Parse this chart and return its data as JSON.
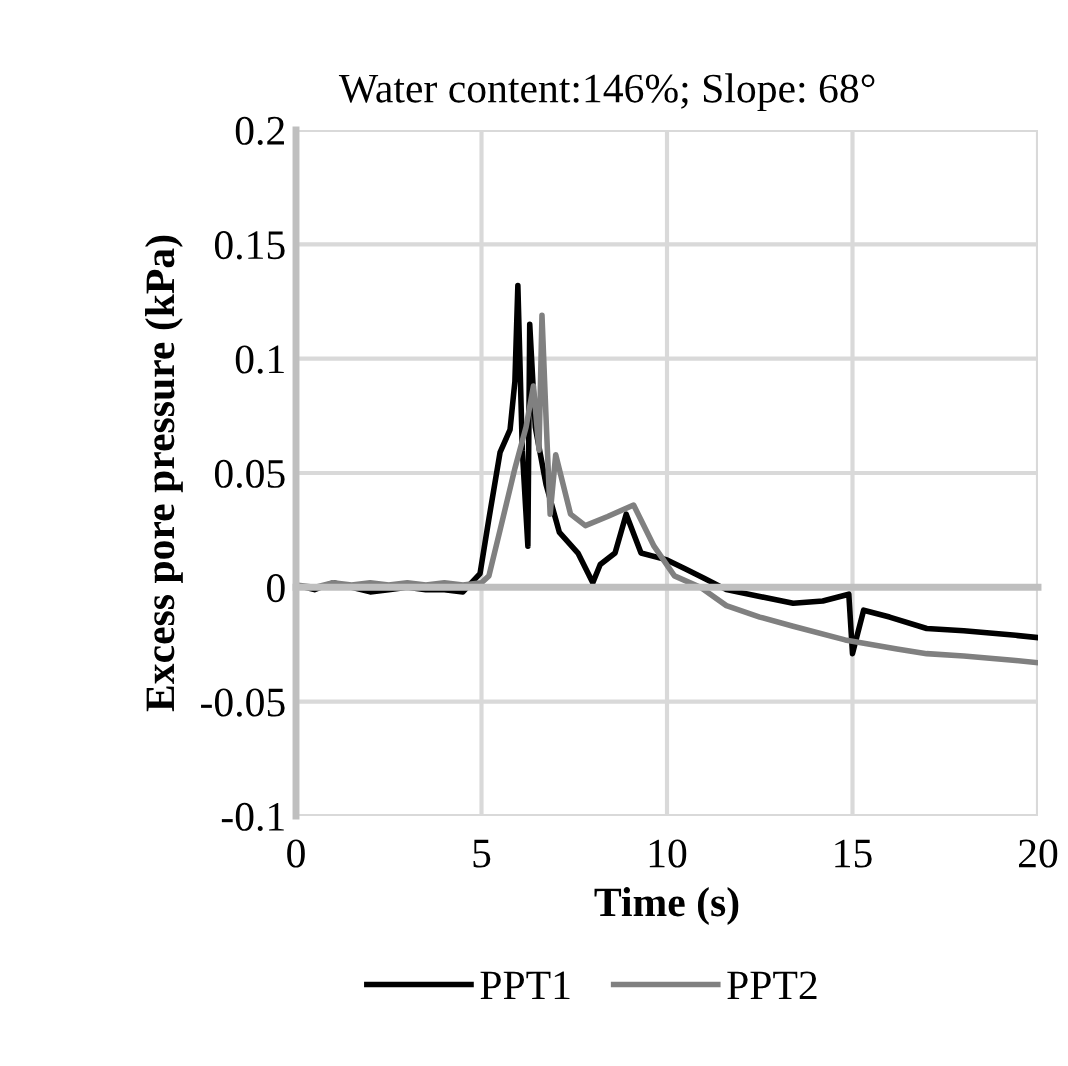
{
  "chart_data": {
    "type": "line",
    "title": "Water content:146%; Slope: 68°",
    "xlabel": "Time (s)",
    "ylabel": "Excess pore pressure (kPa)",
    "xlim": [
      0,
      20
    ],
    "xticks": [
      0,
      5,
      10,
      15,
      20
    ],
    "ylim": [
      -0.1,
      0.2
    ],
    "yticks": [
      -0.1,
      -0.05,
      0,
      0.05,
      0.1,
      0.15,
      0.2
    ],
    "grid": true,
    "legend": "bottom",
    "line_style": "solid",
    "marker": "none",
    "series": [
      {
        "name": "PPT1",
        "color": "#000000",
        "x": [
          0,
          0.5,
          1,
          1.5,
          2,
          2.5,
          3,
          3.5,
          4,
          4.5,
          4.96,
          5.2,
          5.5,
          5.77,
          5.9,
          5.98,
          6.1,
          6.25,
          6.3,
          6.45,
          6.74,
          7.1,
          7.6,
          8.0,
          8.2,
          8.6,
          8.9,
          9.3,
          10.0,
          10.5,
          11.0,
          11.6,
          12.5,
          13.4,
          14.2,
          14.9,
          15.0,
          15.3,
          16.0,
          17.0,
          18.0,
          19.4,
          20
        ],
        "values": [
          0.001,
          -0.001,
          0.002,
          0,
          -0.002,
          -0.001,
          0,
          -0.001,
          -0.001,
          -0.002,
          0.006,
          0.03,
          0.059,
          0.069,
          0.09,
          0.132,
          0.06,
          0.018,
          0.115,
          0.07,
          0.045,
          0.024,
          0.015,
          0.002,
          0.01,
          0.015,
          0.032,
          0.015,
          0.012,
          0.008,
          0.004,
          -0.001,
          -0.004,
          -0.007,
          -0.006,
          -0.003,
          -0.029,
          -0.01,
          -0.013,
          -0.018,
          -0.019,
          -0.021,
          -0.022
        ]
      },
      {
        "name": "PPT2",
        "color": "#808080",
        "x": [
          0,
          0.5,
          1,
          1.5,
          2,
          2.5,
          3,
          3.5,
          4,
          4.5,
          5.0,
          5.2,
          5.5,
          5.9,
          6.2,
          6.4,
          6.55,
          6.63,
          6.75,
          6.85,
          7.0,
          7.4,
          7.8,
          8.4,
          9.1,
          9.65,
          10.2,
          10.9,
          11.6,
          12.5,
          13.4,
          14.8,
          15.5,
          16.2,
          17.0,
          18.0,
          19.4,
          20
        ],
        "values": [
          0.001,
          0,
          0.002,
          0.001,
          0.002,
          0.001,
          0.002,
          0.001,
          0.002,
          0.001,
          0.002,
          0.005,
          0.025,
          0.052,
          0.07,
          0.088,
          0.06,
          0.119,
          0.07,
          0.032,
          0.058,
          0.032,
          0.027,
          0.031,
          0.036,
          0.018,
          0.005,
          0,
          -0.008,
          -0.013,
          -0.017,
          -0.023,
          -0.025,
          -0.027,
          -0.029,
          -0.03,
          -0.032,
          -0.033
        ]
      }
    ]
  }
}
